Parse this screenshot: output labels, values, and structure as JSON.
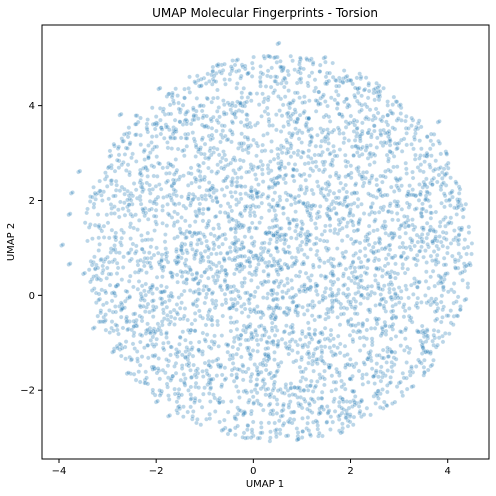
{
  "chart_data": {
    "type": "scatter",
    "title": "UMAP Molecular Fingerprints - Torsion",
    "xlabel": "UMAP 1",
    "ylabel": "UMAP 2",
    "xlim": [
      -4.35,
      4.85
    ],
    "ylim": [
      -3.45,
      5.7
    ],
    "xticks": [
      -4,
      -2,
      0,
      2,
      4
    ],
    "yticks": [
      -2,
      0,
      2,
      4
    ],
    "xtick_labels": [
      "−4",
      "−2",
      "0",
      "2",
      "4"
    ],
    "ytick_labels": [
      "−2",
      "0",
      "2",
      "4"
    ],
    "grid": false,
    "legend": "none",
    "marker_color": "#1f77b4",
    "marker_alpha": 0.3,
    "cluster": {
      "center": [
        0.5,
        1.0
      ],
      "approx_radius": 4.0,
      "approx_point_count": 4000
    },
    "points": [
      [
        0.5,
        5.3
      ],
      [
        1.45,
        5.0
      ],
      [
        -0.35,
        4.95
      ],
      [
        -0.75,
        4.85
      ],
      [
        1.9,
        4.6
      ],
      [
        0.95,
        4.55
      ],
      [
        -1.95,
        4.35
      ],
      [
        2.15,
        4.35
      ],
      [
        3.0,
        4.0
      ],
      [
        -2.75,
        3.8
      ],
      [
        3.8,
        3.65
      ],
      [
        -3.6,
        2.6
      ],
      [
        3.95,
        2.55
      ],
      [
        -3.75,
        2.15
      ],
      [
        4.05,
        2.15
      ],
      [
        4.3,
        1.8
      ],
      [
        -3.8,
        1.7
      ],
      [
        -3.95,
        1.05
      ],
      [
        4.2,
        1.15
      ],
      [
        -3.8,
        0.65
      ],
      [
        4.35,
        0.6
      ],
      [
        -3.5,
        0.45
      ],
      [
        4.35,
        -0.1
      ],
      [
        3.7,
        -0.15
      ],
      [
        -3.3,
        -0.7
      ],
      [
        3.5,
        -0.8
      ],
      [
        -2.9,
        -1.2
      ],
      [
        3.55,
        -1.2
      ],
      [
        -2.6,
        -1.65
      ],
      [
        3.0,
        -1.85
      ],
      [
        -2.0,
        -2.25
      ],
      [
        2.2,
        -2.25
      ],
      [
        -1.75,
        -2.55
      ],
      [
        1.75,
        -2.55
      ],
      [
        -0.65,
        -2.85
      ],
      [
        0.45,
        -2.85
      ],
      [
        1.8,
        -2.9
      ],
      [
        0.9,
        -3.05
      ],
      [
        -0.2,
        -2.5
      ],
      [
        1.35,
        -2.5
      ]
    ]
  }
}
